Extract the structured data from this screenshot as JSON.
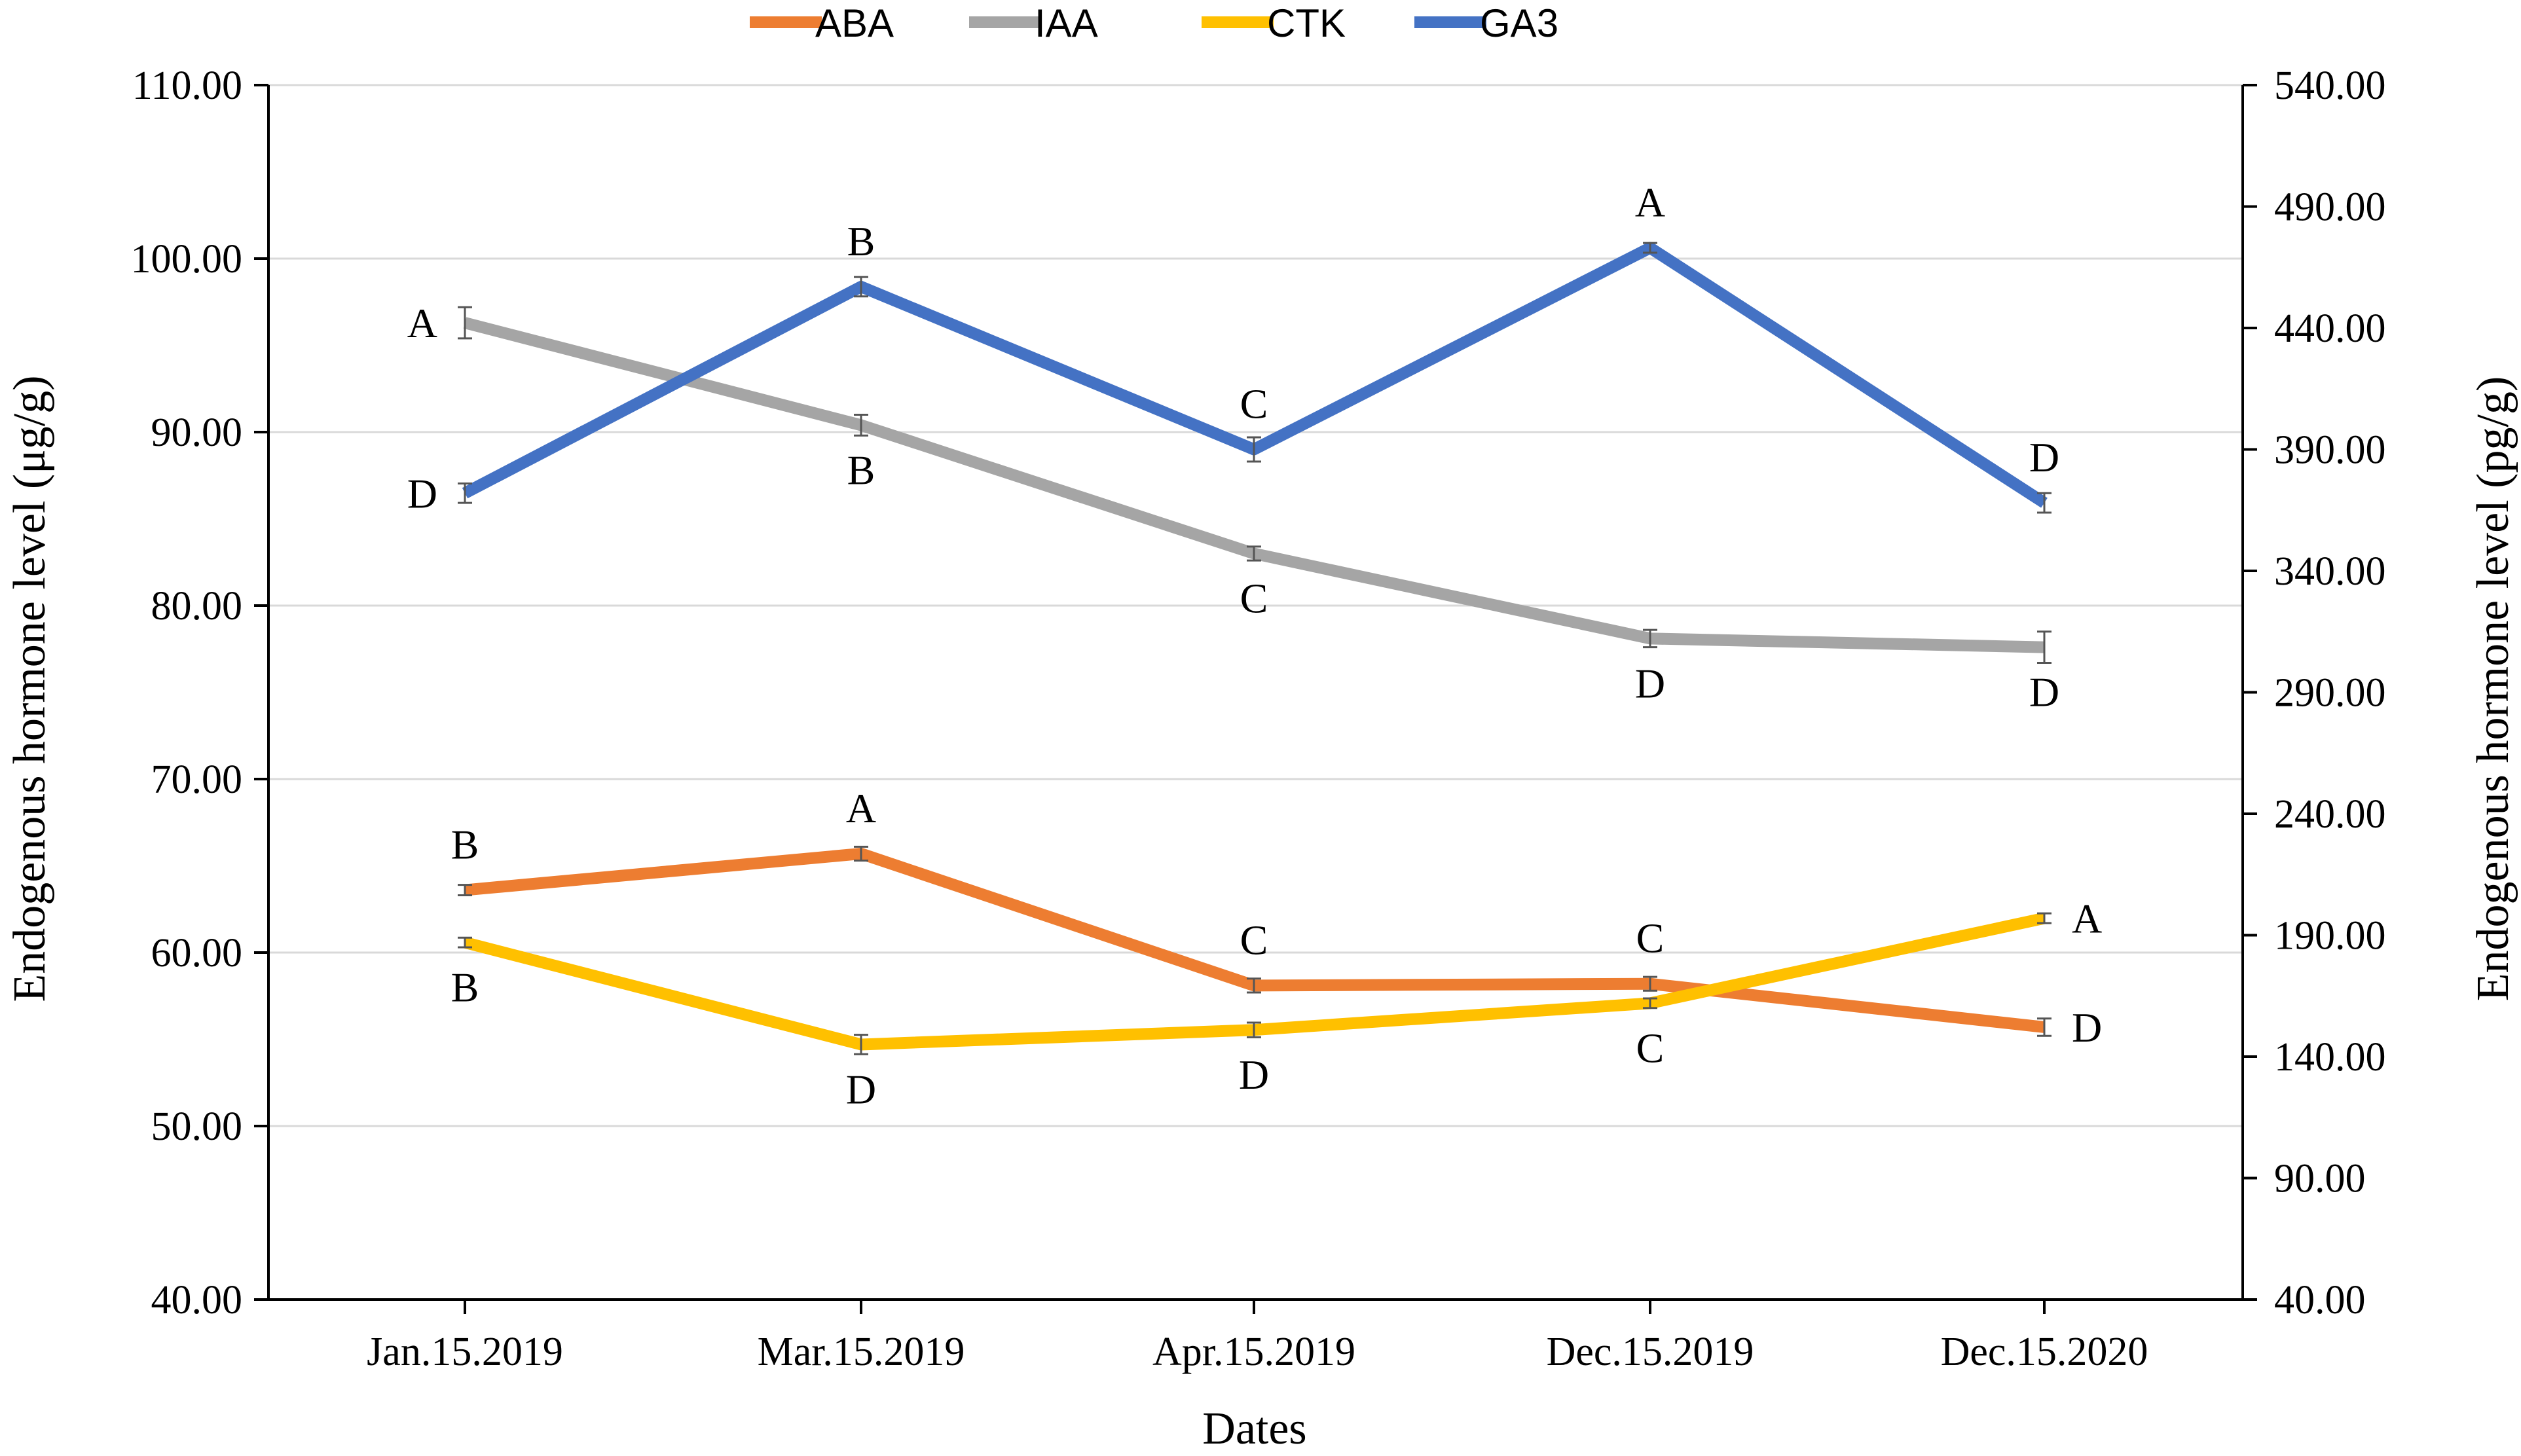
{
  "chart_data": {
    "type": "line",
    "title": "",
    "xlabel": "Dates",
    "ylabel_left": "Endogenous hormone level (μg/g)",
    "ylabel_right": "Endogenous hormone level (pg/g)",
    "categories": [
      "Jan.15.2019",
      "Mar.15.2019",
      "Apr.15.2019",
      "Dec.15.2019",
      "Dec.15.2020"
    ],
    "left_axis": {
      "ylim": [
        40,
        110
      ],
      "ticks": [
        40,
        50,
        60,
        70,
        80,
        90,
        100,
        110
      ],
      "tick_labels": [
        "40.00",
        "50.00",
        "60.00",
        "70.00",
        "80.00",
        "90.00",
        "100.00",
        "110.00"
      ]
    },
    "right_axis": {
      "ylim": [
        40,
        540
      ],
      "ticks": [
        40,
        90,
        140,
        190,
        240,
        290,
        340,
        390,
        440,
        490,
        540
      ],
      "tick_labels": [
        "40.00",
        "90.00",
        "140.00",
        "190.00",
        "240.00",
        "290.00",
        "340.00",
        "390.00",
        "440.00",
        "490.00",
        "540.00"
      ]
    },
    "grid": true,
    "legend_position": "top",
    "series": [
      {
        "name": "ABA",
        "color": "#ED7D31",
        "axis": "left",
        "values": [
          63.6,
          65.7,
          58.1,
          58.2,
          55.7
        ],
        "errors": [
          0.3,
          0.4,
          0.4,
          0.4,
          0.5
        ],
        "sig": [
          "B",
          "A",
          "C",
          "C",
          "D"
        ],
        "sig_pos": [
          "above",
          "above",
          "above",
          "above",
          "right"
        ]
      },
      {
        "name": "IAA",
        "color": "#A5A5A5",
        "axis": "left",
        "values": [
          96.3,
          90.4,
          83.0,
          78.1,
          77.6
        ],
        "errors": [
          0.9,
          0.6,
          0.4,
          0.5,
          0.9
        ],
        "sig": [
          "A",
          "B",
          "C",
          "D",
          "D"
        ],
        "sig_pos": [
          "left",
          "below",
          "below",
          "below",
          "below"
        ]
      },
      {
        "name": "CTK",
        "color": "#FFC000",
        "axis": "right",
        "values": [
          187,
          145,
          151,
          162,
          197
        ],
        "errors": [
          2,
          4,
          3,
          2,
          2
        ],
        "sig": [
          "B",
          "D",
          "D",
          "C",
          "A"
        ],
        "sig_pos": [
          "below",
          "below",
          "below",
          "below",
          "right"
        ]
      },
      {
        "name": "GA3",
        "color": "#4472C4",
        "axis": "right",
        "values": [
          372,
          457,
          390,
          473,
          368
        ],
        "errors": [
          4,
          4,
          5,
          2,
          4
        ],
        "sig": [
          "D",
          "B",
          "C",
          "A",
          "D"
        ],
        "sig_pos": [
          "left",
          "above",
          "above",
          "above",
          "above"
        ]
      }
    ]
  }
}
